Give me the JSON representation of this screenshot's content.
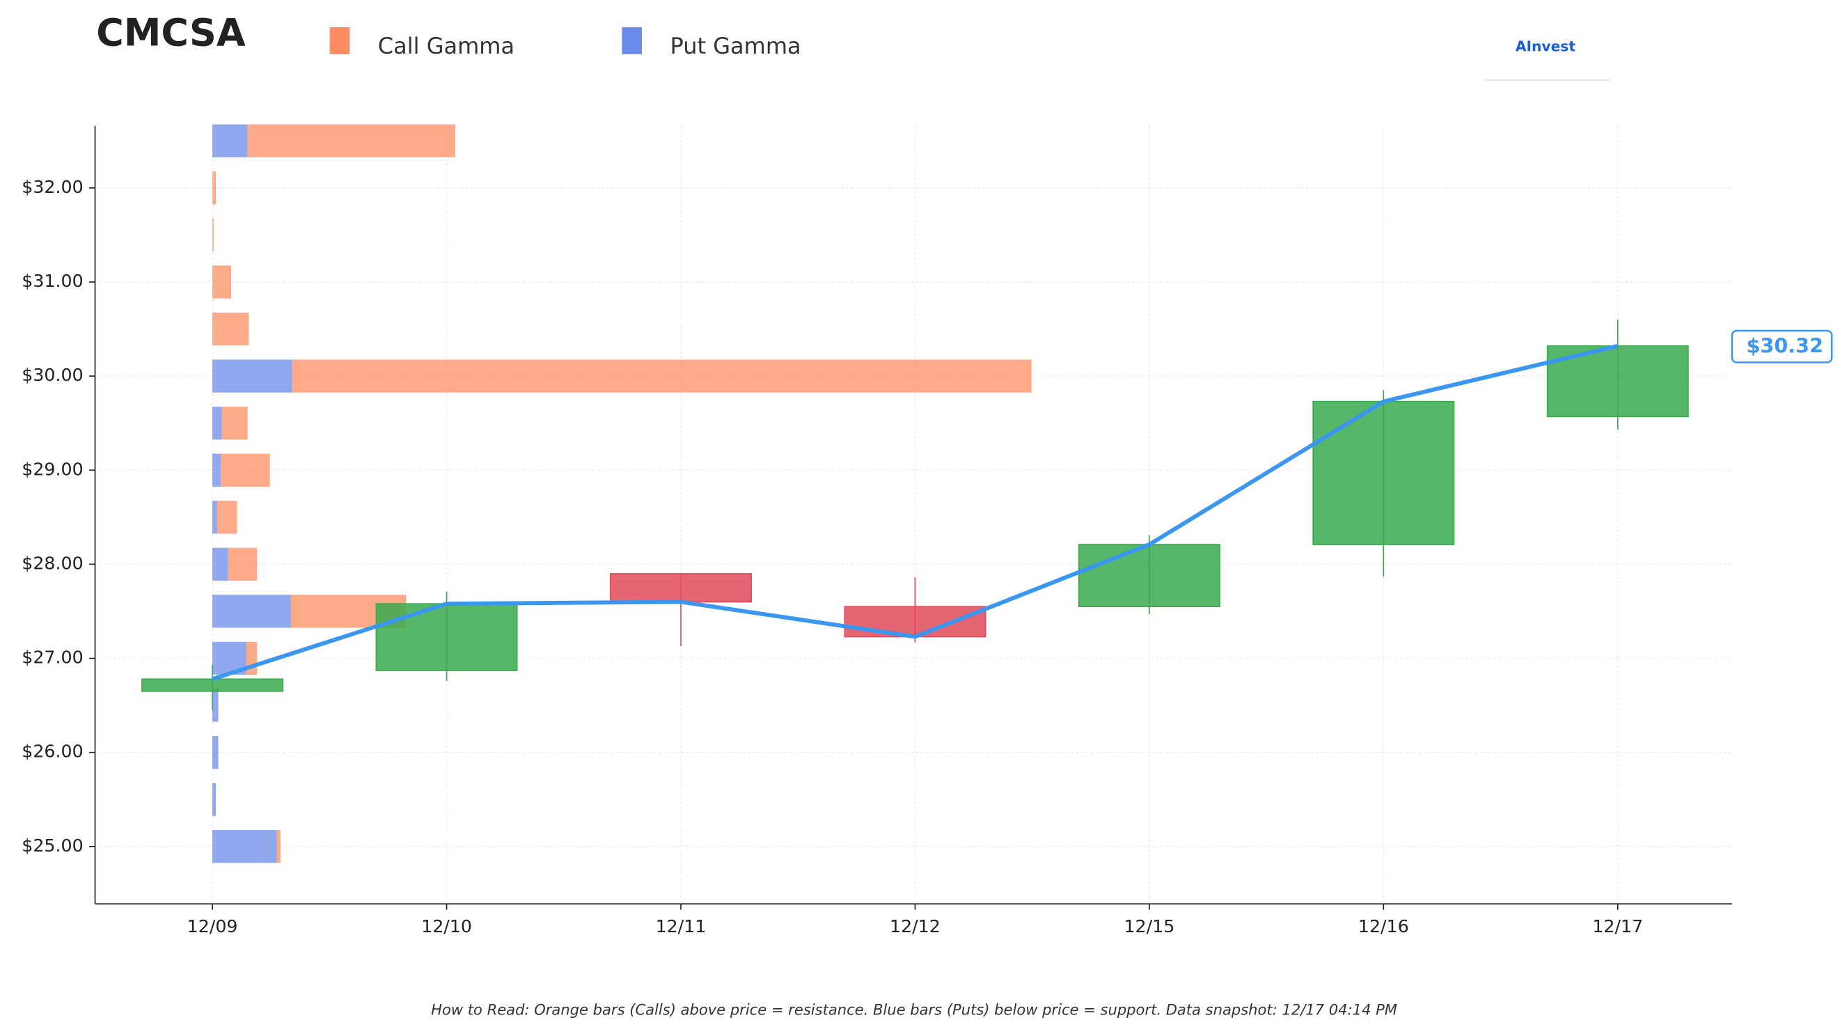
{
  "chart_data": {
    "type": "candlestick",
    "title": "CMCSA",
    "logo": "AInvest",
    "note": "How to Read: Orange bars (Calls) above price = resistance. Blue bars (Puts) below price = support. Data snapshot: 12/17 04:14 PM",
    "categories": [
      "12/09",
      "12/10",
      "12/11",
      "12/12",
      "12/15",
      "12/16",
      "12/17"
    ],
    "open": [
      26.65,
      26.87,
      27.9,
      27.55,
      27.55,
      28.21,
      29.57
    ],
    "high": [
      26.93,
      27.71,
      27.9,
      27.86,
      28.31,
      29.85,
      30.6
    ],
    "low": [
      26.45,
      26.76,
      27.13,
      27.17,
      27.47,
      27.87,
      29.43
    ],
    "close": [
      26.78,
      27.58,
      27.6,
      27.23,
      28.21,
      29.73,
      30.32
    ],
    "up_color": "#3aaa4f",
    "down_color": "#e04a5a",
    "line_color": "#3a96ee",
    "last_price": 30.32,
    "last_price_label": "$30.32",
    "ylim": [
      24.39,
      32.66
    ],
    "yticks": [
      {
        "value": 25,
        "label": "$25.00"
      },
      {
        "value": 26,
        "label": "$26.00"
      },
      {
        "value": 27,
        "label": "$27.00"
      },
      {
        "value": 28,
        "label": "$28.00"
      },
      {
        "value": 29,
        "label": "$29.00"
      },
      {
        "value": 30,
        "label": "$30.00"
      },
      {
        "value": 31,
        "label": "$31.00"
      },
      {
        "value": 32,
        "label": "$32.00"
      }
    ],
    "grid": true,
    "gamma": {
      "strikes": [
        32.5,
        32,
        31.5,
        31,
        30.5,
        30,
        29.5,
        29,
        28.5,
        28,
        27.5,
        27,
        26.5,
        26,
        25.5,
        25
      ],
      "series": [
        {
          "name": "Call Gamma",
          "color": "#fc8d62",
          "values": [
            177,
            3,
            1,
            16,
            31,
            630,
            22,
            42,
            17,
            25,
            98,
            9,
            0,
            0,
            0,
            3
          ]
        },
        {
          "name": "Put Gamma",
          "color": "#6b8be8",
          "values": [
            30,
            0,
            0,
            0,
            0,
            68,
            8,
            7,
            4,
            13,
            67,
            29,
            5,
            5,
            3,
            55
          ]
        }
      ]
    }
  }
}
